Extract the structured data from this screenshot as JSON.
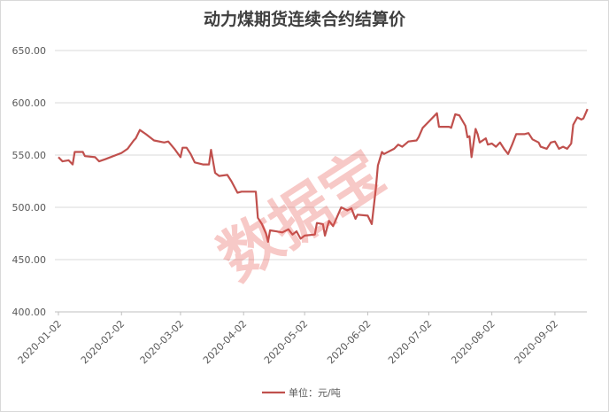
{
  "chart_data": {
    "type": "line",
    "title": "动力煤期货连续合约结算价",
    "watermark": "数据宝",
    "x": [
      "2020-01-02",
      "2020-01-04",
      "2020-01-07",
      "2020-01-09",
      "2020-01-10",
      "2020-01-14",
      "2020-01-15",
      "2020-01-20",
      "2020-01-22",
      "2020-01-25",
      "2020-02-02",
      "2020-02-05",
      "2020-02-08",
      "2020-02-09",
      "2020-02-11",
      "2020-02-14",
      "2020-02-18",
      "2020-02-23",
      "2020-02-25",
      "2020-02-28",
      "2020-03-02",
      "2020-03-03",
      "2020-03-05",
      "2020-03-07",
      "2020-03-09",
      "2020-03-13",
      "2020-03-16",
      "2020-03-17",
      "2020-03-19",
      "2020-03-21",
      "2020-03-25",
      "2020-03-27",
      "2020-03-30",
      "2020-04-01",
      "2020-04-08",
      "2020-04-09",
      "2020-04-11",
      "2020-04-13",
      "2020-04-14",
      "2020-04-15",
      "2020-04-18",
      "2020-04-21",
      "2020-04-24",
      "2020-04-26",
      "2020-04-28",
      "2020-04-30",
      "2020-05-02",
      "2020-05-07",
      "2020-05-08",
      "2020-05-11",
      "2020-05-12",
      "2020-05-14",
      "2020-05-16",
      "2020-05-18",
      "2020-05-20",
      "2020-05-23",
      "2020-05-25",
      "2020-05-27",
      "2020-05-28",
      "2020-06-02",
      "2020-06-04",
      "2020-06-06",
      "2020-06-07",
      "2020-06-09",
      "2020-06-10",
      "2020-06-15",
      "2020-06-17",
      "2020-06-19",
      "2020-06-22",
      "2020-06-26",
      "2020-06-27",
      "2020-06-29",
      "2020-07-01",
      "2020-07-06",
      "2020-07-07",
      "2020-07-12",
      "2020-07-13",
      "2020-07-15",
      "2020-07-17",
      "2020-07-20",
      "2020-07-21",
      "2020-07-22",
      "2020-07-23",
      "2020-07-25",
      "2020-07-26",
      "2020-07-27",
      "2020-07-30",
      "2020-07-31",
      "2020-08-02",
      "2020-08-04",
      "2020-08-06",
      "2020-08-08",
      "2020-08-10",
      "2020-08-12",
      "2020-08-14",
      "2020-08-18",
      "2020-08-20",
      "2020-08-22",
      "2020-08-25",
      "2020-08-26",
      "2020-08-29",
      "2020-08-31",
      "2020-09-02",
      "2020-09-04",
      "2020-09-06",
      "2020-09-08",
      "2020-09-10",
      "2020-09-11",
      "2020-09-13",
      "2020-09-15",
      "2020-09-16",
      "2020-09-18"
    ],
    "series": [
      {
        "name": "单位：元/吨",
        "color": "#c0504d",
        "values": [
          548,
          544,
          545,
          541,
          553,
          553,
          549,
          548,
          544,
          546,
          552,
          556,
          564,
          566,
          574,
          570,
          564,
          562,
          563,
          556,
          548,
          557,
          557,
          551,
          543,
          541,
          541,
          555,
          533,
          530,
          531,
          525,
          514,
          515,
          515,
          490,
          484,
          475,
          467,
          478,
          477,
          476,
          479,
          474,
          477,
          470,
          473,
          474,
          485,
          484,
          473,
          487,
          482,
          491,
          500,
          497,
          499,
          489,
          493,
          492,
          484,
          518,
          540,
          553,
          551,
          556,
          560,
          558,
          563,
          564,
          567,
          576,
          580,
          590,
          577,
          577,
          576,
          589,
          588,
          578,
          567,
          568,
          548,
          575,
          570,
          562,
          566,
          560,
          561,
          558,
          562,
          556,
          551,
          560,
          570,
          570,
          571,
          565,
          562,
          558,
          556,
          562,
          563,
          556,
          558,
          556,
          561,
          579,
          586,
          584,
          585,
          594
        ]
      }
    ],
    "ylim": [
      400,
      650
    ],
    "yticks": [
      {
        "value": 400,
        "label": "400.00"
      },
      {
        "value": 450,
        "label": "450.00"
      },
      {
        "value": 500,
        "label": "500.00"
      },
      {
        "value": 550,
        "label": "550.00"
      },
      {
        "value": 600,
        "label": "600.00"
      },
      {
        "value": 650,
        "label": "650.00"
      }
    ],
    "xlim": [
      "2020-01-01",
      "2020-09-19"
    ],
    "xticks": [
      "2020-01-02",
      "2020-02-02",
      "2020-03-02",
      "2020-04-02",
      "2020-05-02",
      "2020-06-02",
      "2020-07-02",
      "2020-08-02",
      "2020-09-02"
    ],
    "grid": true
  }
}
